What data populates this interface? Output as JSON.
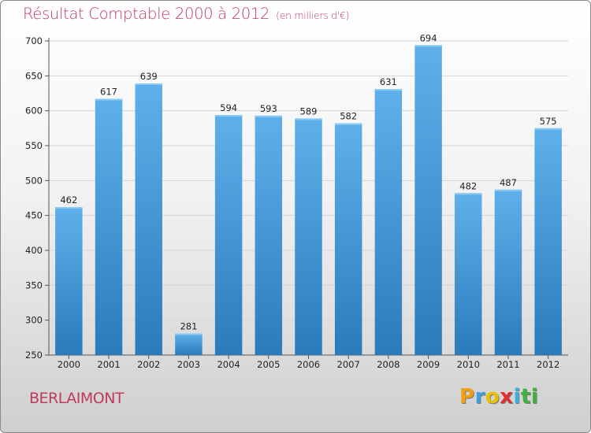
{
  "header": {
    "title": "Résultat Comptable 2000 à 2012",
    "subtitle": "(en milliers d'€)"
  },
  "footer": {
    "commune": "BERLAIMONT",
    "logo_letters": [
      {
        "char": "P",
        "color": "#f0a010"
      },
      {
        "char": "r",
        "color": "#3aa0e0"
      },
      {
        "char": "o",
        "color": "#e8c000"
      },
      {
        "char": "x",
        "color": "#e03030"
      },
      {
        "char": "i",
        "color": "#3ab0e0"
      },
      {
        "char": "t",
        "color": "#40b040"
      },
      {
        "char": "i",
        "color": "#40b040"
      }
    ]
  },
  "colors": {
    "bar_light": "#5fb0ea",
    "bar_dark": "#2a7bbb",
    "title": "#c03a5c"
  },
  "chart_data": {
    "type": "bar",
    "title": "Résultat Comptable 2000 à 2012",
    "subtitle": "(en milliers d'€)",
    "xlabel": "",
    "ylabel": "",
    "categories": [
      "2000",
      "2001",
      "2002",
      "2003",
      "2004",
      "2005",
      "2006",
      "2007",
      "2008",
      "2009",
      "2010",
      "2011",
      "2012"
    ],
    "values": [
      462,
      617,
      639,
      281,
      594,
      593,
      589,
      582,
      631,
      694,
      482,
      487,
      575
    ],
    "ylim": [
      250,
      700
    ],
    "yticks": [
      250,
      300,
      350,
      400,
      450,
      500,
      550,
      600,
      650,
      700
    ],
    "grid": true
  }
}
